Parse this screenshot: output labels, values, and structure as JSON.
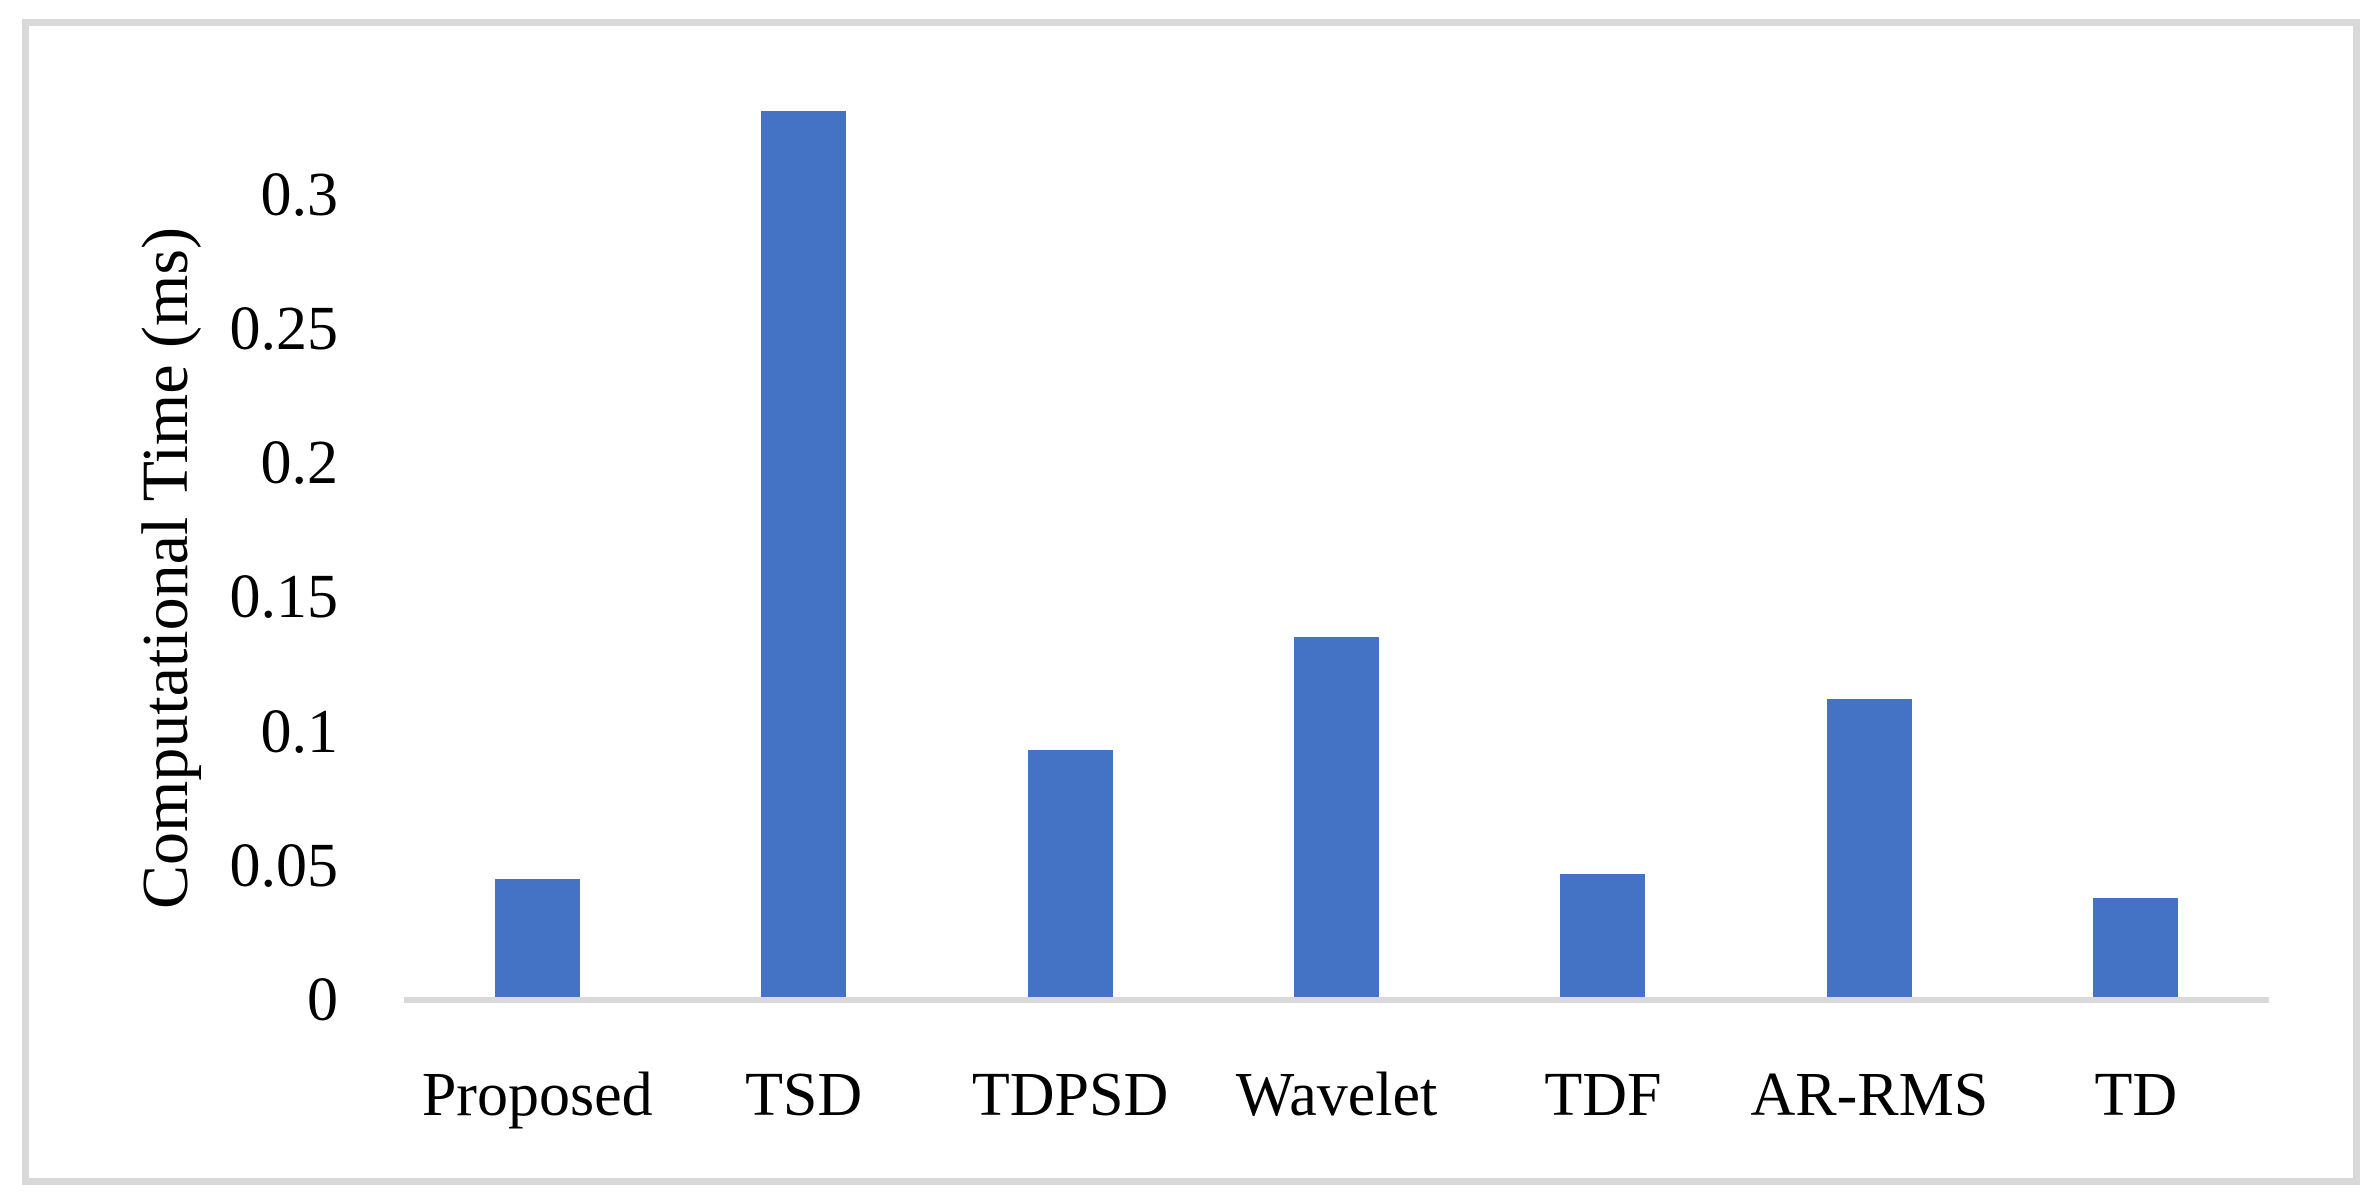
{
  "figure": {
    "kind": "bar-chart-figure",
    "background": "#ffffff"
  },
  "chart_data": {
    "type": "bar",
    "title": "",
    "xlabel": "",
    "ylabel": "Computational Time (ms)",
    "categories": [
      "Proposed",
      "TSD",
      "TDPSD",
      "Wavelet",
      "TDF",
      "AR-RMS",
      "TD"
    ],
    "values": [
      0.044,
      0.33,
      0.092,
      0.134,
      0.046,
      0.111,
      0.037
    ],
    "ylim": [
      0,
      0.35
    ],
    "yticks": [
      0,
      0.05,
      0.1,
      0.15,
      0.2,
      0.25,
      0.3
    ],
    "ytick_labels": [
      "0",
      "0.05",
      "0.1",
      "0.15",
      "0.2",
      "0.25",
      "0.3"
    ],
    "grid": false,
    "legend": false,
    "bar_color": "#4472C4",
    "axis_line_color": "#D9D9D9",
    "frame_color": "#D9D9D9",
    "text_color": "#000000"
  }
}
